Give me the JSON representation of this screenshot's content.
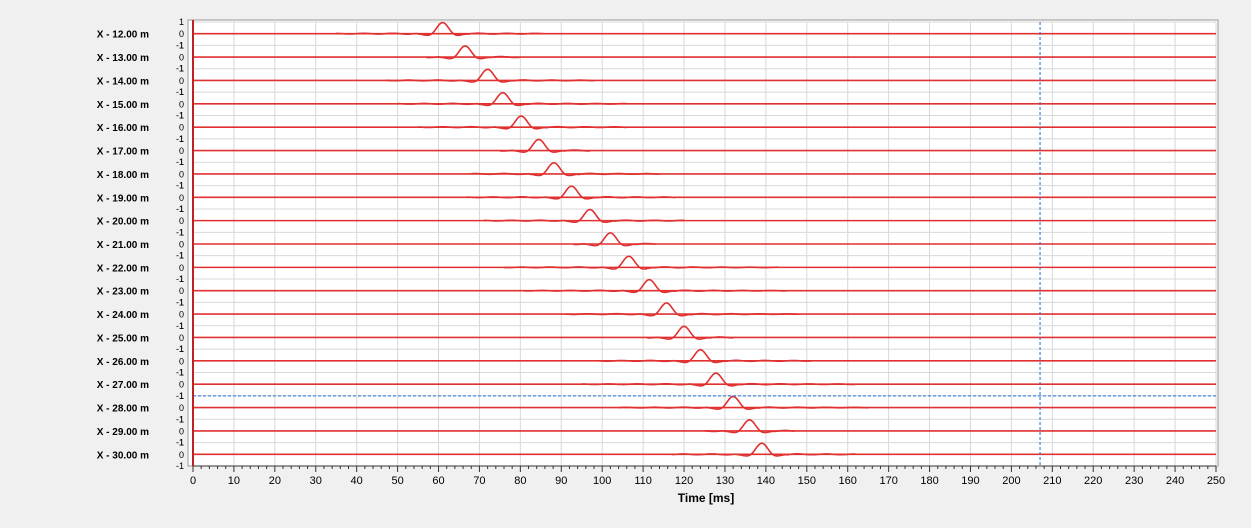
{
  "chart_data": {
    "type": "line",
    "title": "",
    "xlabel": "Time [ms]",
    "ylabel": "",
    "xlim": [
      0,
      250
    ],
    "x_ticks": [
      0,
      10,
      20,
      30,
      40,
      50,
      60,
      70,
      80,
      90,
      100,
      110,
      120,
      130,
      140,
      150,
      160,
      170,
      180,
      190,
      200,
      210,
      220,
      230,
      240,
      250
    ],
    "per_trace_ylim": [
      -1,
      1
    ],
    "per_trace_y_ticks": [
      "1",
      "0",
      "-1"
    ],
    "grid": true,
    "trace_color": "#e03030",
    "cursor_color": "#1a6fd8",
    "cursor_time_ms": 207,
    "cursor_between": [
      "X - 27.00 m",
      "X - 28.00 m"
    ],
    "series": [
      {
        "name": "X - 12.00 m",
        "peak_ms": 61.0,
        "extent_ms": [
          35,
          86
        ]
      },
      {
        "name": "X - 13.00 m",
        "peak_ms": 66.5,
        "extent_ms": [
          57,
          80
        ]
      },
      {
        "name": "X - 14.00 m",
        "peak_ms": 72.0,
        "extent_ms": [
          47,
          98
        ]
      },
      {
        "name": "X - 15.00 m",
        "peak_ms": 75.7,
        "extent_ms": [
          50,
          106
        ]
      },
      {
        "name": "X - 16.00 m",
        "peak_ms": 80.2,
        "extent_ms": [
          55,
          106
        ]
      },
      {
        "name": "X - 17.00 m",
        "peak_ms": 84.5,
        "extent_ms": [
          75,
          97
        ]
      },
      {
        "name": "X - 18.00 m",
        "peak_ms": 88.2,
        "extent_ms": [
          68,
          114
        ]
      },
      {
        "name": "X - 19.00 m",
        "peak_ms": 92.5,
        "extent_ms": [
          67,
          118
        ]
      },
      {
        "name": "X - 20.00 m",
        "peak_ms": 97.0,
        "extent_ms": [
          71,
          120
        ]
      },
      {
        "name": "X - 21.00 m",
        "peak_ms": 102.0,
        "extent_ms": [
          93,
          113
        ]
      },
      {
        "name": "X - 22.00 m",
        "peak_ms": 106.5,
        "extent_ms": [
          76,
          143
        ]
      },
      {
        "name": "X - 23.00 m",
        "peak_ms": 111.5,
        "extent_ms": [
          81,
          145
        ]
      },
      {
        "name": "X - 24.00 m",
        "peak_ms": 115.7,
        "extent_ms": [
          91,
          148
        ]
      },
      {
        "name": "X - 25.00 m",
        "peak_ms": 120.0,
        "extent_ms": [
          111,
          132
        ]
      },
      {
        "name": "X - 26.00 m",
        "peak_ms": 124.0,
        "extent_ms": [
          99,
          151
        ]
      },
      {
        "name": "X - 27.00 m",
        "peak_ms": 127.8,
        "extent_ms": [
          95,
          162
        ]
      },
      {
        "name": "X - 28.00 m",
        "peak_ms": 132.0,
        "extent_ms": [
          104,
          165
        ]
      },
      {
        "name": "X - 29.00 m",
        "peak_ms": 136.0,
        "extent_ms": [
          125,
          147
        ]
      },
      {
        "name": "X - 30.00 m",
        "peak_ms": 139.0,
        "extent_ms": [
          117,
          162
        ]
      }
    ]
  }
}
